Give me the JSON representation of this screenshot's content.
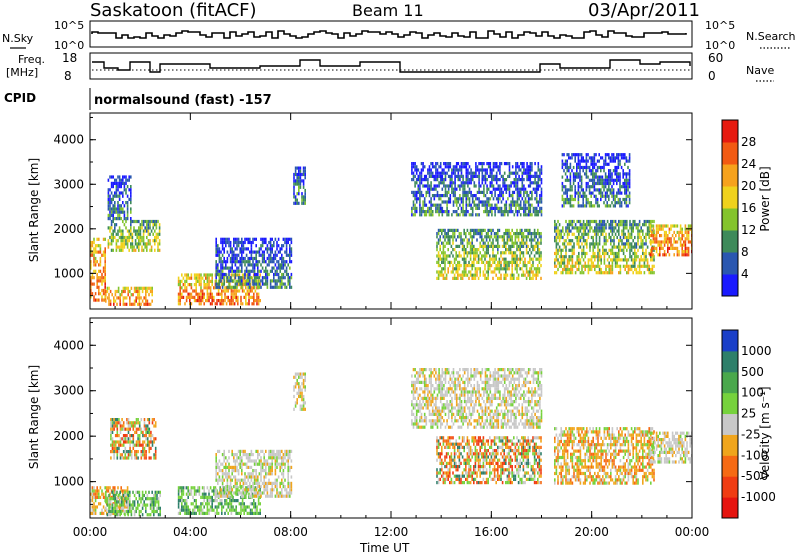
{
  "header": {
    "station": "Saskatoon (fitACF)",
    "beam": "Beam 11",
    "date": "03/Apr/2011"
  },
  "status_panels": {
    "nsky_label": "N.Sky",
    "nsky_ticks": [
      "10^5",
      "10^0"
    ],
    "nsearch_label": "N.Search",
    "nsearch_ticks": [
      "10^5",
      "10^0"
    ],
    "freq_label": "Freq.",
    "freq_units": "[MHz]",
    "freq_ticks": [
      "18",
      "8"
    ],
    "nave_label": "Nave",
    "nave_ticks": [
      "60",
      "0"
    ],
    "cpid_label": "CPID",
    "cpid_text": "normalsound (fast) -157"
  },
  "chart_data": [
    {
      "type": "heatmap",
      "name": "power-panel",
      "ylabel": "Slant Range [km]",
      "ylim": [
        200,
        4600
      ],
      "yticks": [
        "1000",
        "2000",
        "3000",
        "4000"
      ],
      "xticks": [
        "00:00",
        "04:00",
        "08:00",
        "12:00",
        "16:00",
        "20:00",
        "00:00"
      ],
      "colorbar": {
        "label": "Power [dB]",
        "ticks": [
          "4",
          "8",
          "12",
          "16",
          "20",
          "24",
          "28"
        ],
        "colors": [
          "#1a1aff",
          "#2a57b0",
          "#3e8a5a",
          "#84c42c",
          "#f0d21c",
          "#f6a21c",
          "#f25a12",
          "#e61a0f"
        ]
      },
      "echo_regions": [
        {
          "t_start": 0.0,
          "t_end": 0.6,
          "r_low": 400,
          "r_high": 1800,
          "level": "high"
        },
        {
          "t_start": 0.6,
          "t_end": 2.5,
          "r_low": 300,
          "r_high": 700,
          "level": "high"
        },
        {
          "t_start": 0.7,
          "t_end": 2.8,
          "r_low": 1500,
          "r_high": 2200,
          "level": "mid"
        },
        {
          "t_start": 0.7,
          "t_end": 1.6,
          "r_low": 2200,
          "r_high": 3200,
          "level": "low"
        },
        {
          "t_start": 3.5,
          "t_end": 6.8,
          "r_low": 300,
          "r_high": 1000,
          "level": "high"
        },
        {
          "t_start": 5.0,
          "t_end": 8.0,
          "r_low": 700,
          "r_high": 1800,
          "level": "low"
        },
        {
          "t_start": 8.1,
          "t_end": 8.6,
          "r_low": 2600,
          "r_high": 3400,
          "level": "low"
        },
        {
          "t_start": 12.8,
          "t_end": 18.0,
          "r_low": 2300,
          "r_high": 3500,
          "level": "low"
        },
        {
          "t_start": 13.8,
          "t_end": 18.0,
          "r_low": 900,
          "r_high": 2000,
          "level": "mid"
        },
        {
          "t_start": 18.5,
          "t_end": 22.5,
          "r_low": 1000,
          "r_high": 2200,
          "level": "mid"
        },
        {
          "t_start": 18.8,
          "t_end": 21.5,
          "r_low": 2500,
          "r_high": 3700,
          "level": "low"
        },
        {
          "t_start": 22.3,
          "t_end": 24.0,
          "r_low": 1400,
          "r_high": 2100,
          "level": "high"
        }
      ]
    },
    {
      "type": "heatmap",
      "name": "velocity-panel",
      "ylabel": "Slant Range [km]",
      "xlabel": "Time UT",
      "ylim": [
        200,
        4600
      ],
      "yticks": [
        "1000",
        "2000",
        "3000",
        "4000"
      ],
      "xticks": [
        "00:00",
        "04:00",
        "08:00",
        "12:00",
        "16:00",
        "20:00",
        "00:00"
      ],
      "colorbar": {
        "label": "Velocity [m s⁻¹]",
        "ticks": [
          "1000",
          "500",
          "100",
          "25",
          "-25",
          "-100",
          "-500",
          "-1000"
        ],
        "colors": [
          "#1a3fc8",
          "#2e7f6a",
          "#4aa84c",
          "#76d23c",
          "#c8c8c8",
          "#f0a51c",
          "#f66a14",
          "#f03c12",
          "#e6140f"
        ]
      },
      "echo_regions": [
        {
          "t_start": 0.0,
          "t_end": 1.5,
          "r_low": 300,
          "r_high": 900,
          "level": "orange"
        },
        {
          "t_start": 0.6,
          "t_end": 2.8,
          "r_low": 300,
          "r_high": 800,
          "level": "green"
        },
        {
          "t_start": 0.8,
          "t_end": 2.6,
          "r_low": 1500,
          "r_high": 2400,
          "level": "mixed"
        },
        {
          "t_start": 3.5,
          "t_end": 6.8,
          "r_low": 300,
          "r_high": 900,
          "level": "green"
        },
        {
          "t_start": 5.0,
          "t_end": 8.0,
          "r_low": 700,
          "r_high": 1700,
          "level": "grey"
        },
        {
          "t_start": 8.1,
          "t_end": 8.6,
          "r_low": 2600,
          "r_high": 3400,
          "level": "grey"
        },
        {
          "t_start": 12.8,
          "t_end": 18.0,
          "r_low": 2200,
          "r_high": 3500,
          "level": "grey"
        },
        {
          "t_start": 13.8,
          "t_end": 18.0,
          "r_low": 1000,
          "r_high": 2000,
          "level": "mixed"
        },
        {
          "t_start": 18.5,
          "t_end": 22.5,
          "r_low": 1000,
          "r_high": 2200,
          "level": "orange"
        },
        {
          "t_start": 22.3,
          "t_end": 24.0,
          "r_low": 1400,
          "r_high": 2100,
          "level": "grey"
        }
      ]
    }
  ]
}
